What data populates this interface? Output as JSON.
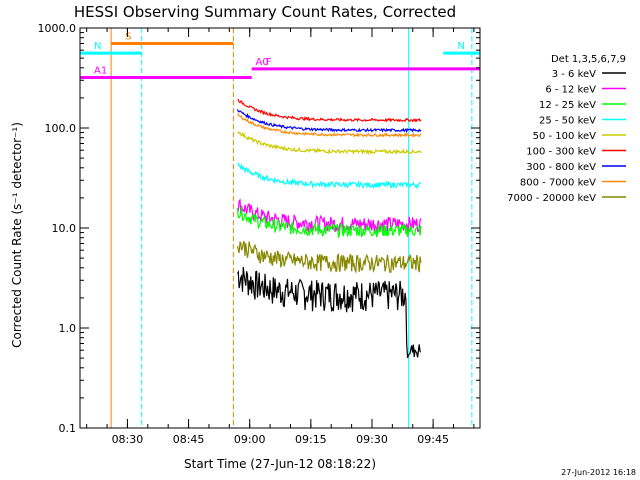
{
  "chart_data": {
    "type": "line",
    "title": "HESSI Observing Summary Count Rates, Corrected",
    "xlabel": "Start Time (27-Jun-12 08:18:22)",
    "ylabel": "Corrected Count Rate (s⁻¹ detector⁻¹)",
    "y_scale": "log",
    "ylim": [
      0.1,
      1000
    ],
    "xlim": [
      "08:18:22",
      "09:56:30"
    ],
    "y_ticks": [
      "0.1",
      "1.0",
      "10.0",
      "100.0",
      "1000.0"
    ],
    "x_ticks": [
      "08:30",
      "08:45",
      "09:00",
      "09:15",
      "09:30",
      "09:45"
    ],
    "legend_title": "Det 1,3,5,6,7,9",
    "legend_position": "right",
    "series": [
      {
        "name": "3 - 6 keV",
        "color": "#000000",
        "level": 2.2,
        "noise": 0.35,
        "start": "08:57:00",
        "end": "09:42:00",
        "tail": 0.6
      },
      {
        "name": "6 - 12 keV",
        "color": "#ff00ff",
        "level": 11,
        "noise": 0.18,
        "start": "08:57:00",
        "end": "09:42:00"
      },
      {
        "name": "12 - 25 keV",
        "color": "#00ff00",
        "level": 9.5,
        "noise": 0.15,
        "start": "08:57:00",
        "end": "09:42:00"
      },
      {
        "name": "25 - 50 keV",
        "color": "#00ffff",
        "level": 27,
        "noise": 0.06,
        "start": "08:57:00",
        "end": "09:42:00"
      },
      {
        "name": "50 - 100 keV",
        "color": "#cccc00",
        "level": 58,
        "noise": 0.04,
        "start": "08:57:00",
        "end": "09:42:00"
      },
      {
        "name": "100 - 300 keV",
        "color": "#ff0000",
        "level": 120,
        "noise": 0.03,
        "start": "08:57:00",
        "end": "09:42:00"
      },
      {
        "name": "300 - 800 keV",
        "color": "#0000ff",
        "level": 95,
        "noise": 0.03,
        "start": "08:57:00",
        "end": "09:42:00"
      },
      {
        "name": "800 - 7000 keV",
        "color": "#ff8800",
        "level": 85,
        "noise": 0.03,
        "start": "08:57:00",
        "end": "09:42:00"
      },
      {
        "name": "7000 - 20000 keV",
        "color": "#888800",
        "level": 4.5,
        "noise": 0.2,
        "start": "08:57:00",
        "end": "09:42:00"
      }
    ],
    "flag_bars": [
      {
        "label": "S",
        "color": "#ff8000",
        "y": 700,
        "start": "08:26:00",
        "end": "08:56:00"
      },
      {
        "label": "N",
        "color": "#00ffff",
        "y": 560,
        "start": "08:18:22",
        "end": "08:33:30"
      },
      {
        "label": "N",
        "color": "#00ffff",
        "y": 560,
        "start": "09:47:30",
        "end": "09:56:30"
      },
      {
        "label": "F",
        "color": "#ff00ff",
        "y": 390,
        "start": "09:00:30",
        "end": "09:56:30"
      },
      {
        "label": "A0",
        "color": "#ff00ff",
        "y": 390,
        "start": "08:58:00",
        "end": "08:58:00"
      },
      {
        "label": "A1",
        "color": "#ff00ff",
        "y": 320,
        "start": "08:18:22",
        "end": "09:00:30"
      }
    ],
    "vertical_lines": [
      {
        "time": "08:18:22",
        "color": "#00ffff",
        "style": "solid"
      },
      {
        "time": "08:26:00",
        "color": "#ff8000",
        "style": "solid"
      },
      {
        "time": "08:33:30",
        "color": "#00ffff",
        "style": "dashed"
      },
      {
        "time": "08:56:00",
        "color": "#ff8000",
        "style": "dashed"
      },
      {
        "time": "09:39:00",
        "color": "#00ffff",
        "style": "solid"
      },
      {
        "time": "09:54:30",
        "color": "#00ffff",
        "style": "dashed"
      }
    ]
  },
  "footer": {
    "timestamp": "27-Jun-2012 16:18"
  }
}
